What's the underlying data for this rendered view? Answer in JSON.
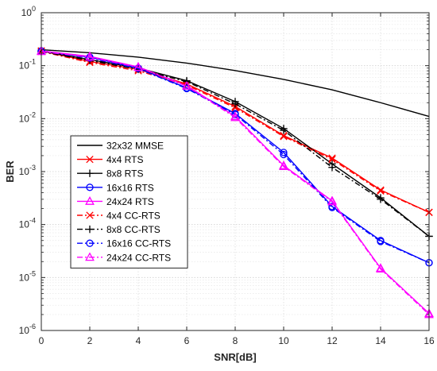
{
  "chart_data": {
    "type": "line",
    "title": "",
    "xlabel": "SNR[dB]",
    "ylabel": "BER",
    "x": [
      0,
      2,
      4,
      6,
      8,
      10,
      12,
      14,
      16
    ],
    "xlim": [
      0,
      16
    ],
    "ylim": [
      1e-06,
      1
    ],
    "yscale": "log",
    "grid": true,
    "legend_position": "lower-left",
    "x_ticks": [
      "0",
      "2",
      "4",
      "6",
      "8",
      "10",
      "12",
      "14",
      "16"
    ],
    "y_ticks": [
      {
        "base": "10",
        "exp": "-6"
      },
      {
        "base": "10",
        "exp": "-5"
      },
      {
        "base": "10",
        "exp": "-4"
      },
      {
        "base": "10",
        "exp": "-3"
      },
      {
        "base": "10",
        "exp": "-2"
      },
      {
        "base": "10",
        "exp": "-1"
      },
      {
        "base": "10",
        "exp": "0"
      }
    ],
    "series": [
      {
        "name": "32x32 MMSE",
        "color": "#000000",
        "line": "solid",
        "marker": "none",
        "values": [
          0.2,
          0.175,
          0.145,
          0.112,
          0.081,
          0.055,
          0.035,
          0.02,
          0.011
        ]
      },
      {
        "name": "4x4 RTS",
        "color": "#ff0000",
        "line": "solid",
        "marker": "x",
        "values": [
          0.19,
          0.12,
          0.085,
          0.045,
          0.017,
          0.0048,
          0.0018,
          0.00045,
          0.00017
        ]
      },
      {
        "name": "8x8 RTS",
        "color": "#000000",
        "line": "solid",
        "marker": "plus",
        "values": [
          0.19,
          0.13,
          0.09,
          0.052,
          0.021,
          0.0065,
          0.0014,
          0.00032,
          6e-05
        ]
      },
      {
        "name": "16x16 RTS",
        "color": "#0000ff",
        "line": "solid",
        "marker": "circle",
        "values": [
          0.19,
          0.145,
          0.09,
          0.038,
          0.0125,
          0.0023,
          0.00022,
          5e-05,
          1.9e-05
        ]
      },
      {
        "name": "24x24 RTS",
        "color": "#ff00ff",
        "line": "solid",
        "marker": "triangle",
        "values": [
          0.19,
          0.15,
          0.095,
          0.042,
          0.011,
          0.0013,
          0.00028,
          1.5e-05,
          2.1e-06
        ]
      },
      {
        "name": "4x4 CC-RTS",
        "color": "#ff0000",
        "line": "dashdot",
        "marker": "x",
        "values": [
          0.185,
          0.115,
          0.08,
          0.043,
          0.016,
          0.0046,
          0.0017,
          0.00043,
          0.00017
        ]
      },
      {
        "name": "8x8 CC-RTS",
        "color": "#000000",
        "line": "dashdot",
        "marker": "plus",
        "values": [
          0.185,
          0.125,
          0.085,
          0.05,
          0.019,
          0.006,
          0.0012,
          0.0003,
          6e-05
        ]
      },
      {
        "name": "16x16 CC-RTS",
        "color": "#0000ff",
        "line": "dashdot",
        "marker": "circle",
        "values": [
          0.185,
          0.14,
          0.088,
          0.037,
          0.012,
          0.0021,
          0.00021,
          4.8e-05,
          1.9e-05
        ]
      },
      {
        "name": "24x24 CC-RTS",
        "color": "#ff00ff",
        "line": "dashdot",
        "marker": "triangle",
        "values": [
          0.185,
          0.145,
          0.093,
          0.041,
          0.0105,
          0.00125,
          0.00027,
          1.45e-05,
          2e-06
        ]
      }
    ]
  }
}
